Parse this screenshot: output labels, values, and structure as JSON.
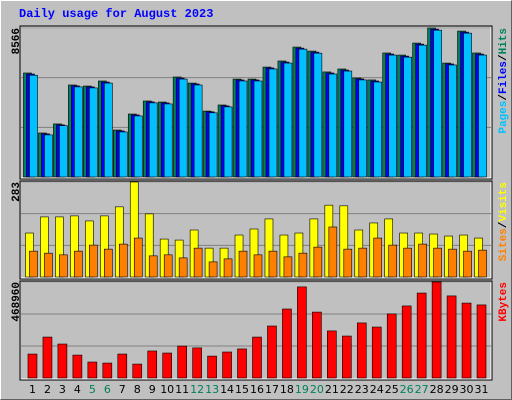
{
  "chart_data": {
    "type": "bar",
    "title": "Daily usage for August 2023",
    "categories": [
      "1",
      "2",
      "3",
      "4",
      "5",
      "6",
      "7",
      "8",
      "9",
      "10",
      "11",
      "12",
      "13",
      "14",
      "15",
      "16",
      "17",
      "18",
      "19",
      "20",
      "21",
      "22",
      "23",
      "24",
      "25",
      "26",
      "27",
      "28",
      "29",
      "30",
      "31"
    ],
    "category_colors": [
      "#000000",
      "#000000",
      "#000000",
      "#000000",
      "#00805c",
      "#00805c",
      "#000000",
      "#000000",
      "#000000",
      "#000000",
      "#000000",
      "#00805c",
      "#00805c",
      "#000000",
      "#000000",
      "#000000",
      "#000000",
      "#000000",
      "#00805c",
      "#00805c",
      "#000000",
      "#000000",
      "#000000",
      "#000000",
      "#000000",
      "#00805c",
      "#00805c",
      "#000000",
      "#000000",
      "#000000",
      "#000000"
    ],
    "legend_separator": "/",
    "panels": [
      {
        "ylim": [
          0,
          8566
        ],
        "yticks": [
          8566
        ],
        "series": [
          {
            "name": "Pages",
            "color": "#00c0ff",
            "values": [
              5850,
              2420,
              2950,
              5180,
              5120,
              5400,
              2590,
              3510,
              4260,
              4200,
              5630,
              5290,
              3690,
              4030,
              5520,
              5520,
              6210,
              6550,
              7350,
              7120,
              5920,
              6090,
              5580,
              5460,
              7010,
              6890,
              7580,
              8440,
              6440,
              8270,
              7010
            ]
          },
          {
            "name": "Files",
            "color": "#0000ff",
            "values": [
              5920,
              2480,
              3000,
              5240,
              5180,
              5460,
              2650,
              3570,
              4320,
              4260,
              5690,
              5350,
              3750,
              4090,
              5580,
              5580,
              6270,
              6610,
              7410,
              7180,
              5980,
              6150,
              5640,
              5520,
              7070,
              6950,
              7640,
              8500,
              6500,
              8330,
              7070
            ]
          },
          {
            "name": "Hits",
            "color": "#00805c",
            "values": [
              5980,
              2530,
              3050,
              5290,
              5230,
              5520,
              2700,
              3620,
              4370,
              4310,
              5750,
              5400,
              3790,
              4140,
              5630,
              5630,
              6320,
              6670,
              7470,
              7240,
              6040,
              6210,
              5690,
              5580,
              7130,
              7010,
              7700,
              8566,
              6550,
              8390,
              7130
            ]
          }
        ]
      },
      {
        "ylim": [
          0,
          283
        ],
        "yticks": [
          283
        ],
        "series": [
          {
            "name": "Sites",
            "color": "#ff8000",
            "values": [
              77,
              71,
              66,
              77,
              95,
              83,
              98,
              116,
              63,
              66,
              57,
              86,
              45,
              54,
              77,
              66,
              77,
              60,
              71,
              89,
              149,
              83,
              86,
              116,
              95,
              86,
              98,
              86,
              83,
              77,
              80
            ]
          },
          {
            "name": "Visits",
            "color": "#ffff00",
            "values": [
              131,
              179,
              179,
              182,
              167,
              182,
              209,
              283,
              188,
              113,
              110,
              140,
              86,
              86,
              125,
              143,
              173,
              125,
              131,
              173,
              214,
              212,
              140,
              161,
              173,
              131,
              131,
              128,
              122,
              125,
              116
            ]
          }
        ]
      },
      {
        "ylim": [
          0,
          468960
        ],
        "yticks": [
          468960
        ],
        "series": [
          {
            "name": "KBytes",
            "color": "#ff0000",
            "values": [
              117000,
              200000,
              166000,
              112000,
              78000,
              73000,
              117000,
              68000,
              132000,
              122000,
              156000,
              147000,
              107000,
              127000,
              142000,
              200000,
              254000,
              337000,
              445000,
              322000,
              230000,
              205000,
              269000,
              249000,
              313000,
              352000,
              415000,
              468960,
              401000,
              366000,
              357000
            ]
          }
        ]
      }
    ]
  }
}
